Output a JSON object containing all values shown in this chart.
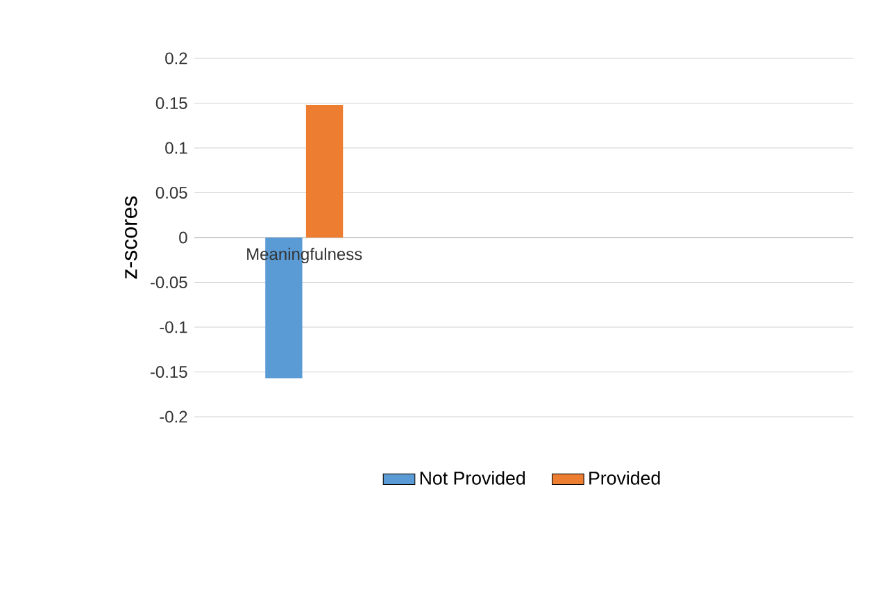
{
  "chart_data": {
    "type": "bar",
    "ylabel": "z-scores",
    "categories": [
      "Meaningfulness",
      null,
      null
    ],
    "series": [
      {
        "name": "Not Provided",
        "color": "#5b9bd5",
        "values": [
          -0.157,
          null,
          null
        ]
      },
      {
        "name": "Provided",
        "color": "#ed7d31",
        "values": [
          0.148,
          null,
          null
        ]
      }
    ],
    "ylim": [
      -0.2,
      0.2
    ],
    "yticks": [
      -0.2,
      -0.15,
      -0.1,
      -0.05,
      0,
      0.05,
      0.1,
      0.15,
      0.2
    ],
    "grid": "y",
    "legend": "bottom"
  }
}
